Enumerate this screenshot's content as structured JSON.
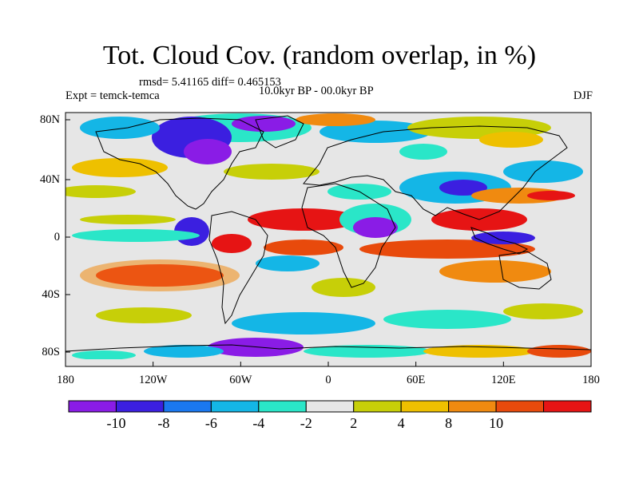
{
  "title": "Tot. Cloud Cov. (random overlap, in %)",
  "stats": "rmsd= 5.41165 diff= 0.465153",
  "experiment": "Expt = temck-temca",
  "period": "10.0kyr BP - 00.0kyr BP",
  "season": "DJF",
  "lat_labels": [
    "80N",
    "40N",
    "0",
    "40S",
    "80S"
  ],
  "lon_labels": [
    "180",
    "120W",
    "60W",
    "0",
    "60E",
    "120E",
    "180"
  ],
  "colorbar": {
    "labels": [
      "-10",
      "-8",
      "-6",
      "-4",
      "-2",
      "2",
      "4",
      "8",
      "10"
    ],
    "colors": [
      "#8a1ce6",
      "#3b1fe0",
      "#1a78f0",
      "#14b6e6",
      "#2ae6c8",
      "#e6e6e6",
      "#c7cf08",
      "#eec000",
      "#f08a10",
      "#e84a0c",
      "#e61414"
    ]
  }
}
